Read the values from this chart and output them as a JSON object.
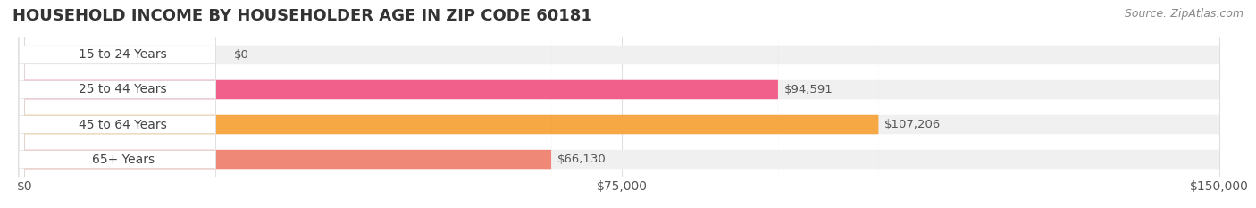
{
  "title": "HOUSEHOLD INCOME BY HOUSEHOLDER AGE IN ZIP CODE 60181",
  "source": "Source: ZipAtlas.com",
  "categories": [
    "15 to 24 Years",
    "25 to 44 Years",
    "45 to 64 Years",
    "65+ Years"
  ],
  "values": [
    0,
    94591,
    107206,
    66130
  ],
  "bar_colors": [
    "#a8a8d8",
    "#f0608a",
    "#f5a843",
    "#f08878"
  ],
  "label_colors": [
    "#a8a8d8",
    "#f0608a",
    "#f5a843",
    "#f08878"
  ],
  "bar_bg_color": "#f0f0f0",
  "label_box_color": "#ffffff",
  "xlim": [
    0,
    150000
  ],
  "xtick_values": [
    0,
    75000,
    150000
  ],
  "xtick_labels": [
    "$0",
    "$75,000",
    "$150,000"
  ],
  "bar_height": 0.55,
  "background_color": "#ffffff",
  "title_fontsize": 13,
  "label_fontsize": 10,
  "value_fontsize": 9.5,
  "source_fontsize": 9,
  "grid_color": "#e0e0e0"
}
